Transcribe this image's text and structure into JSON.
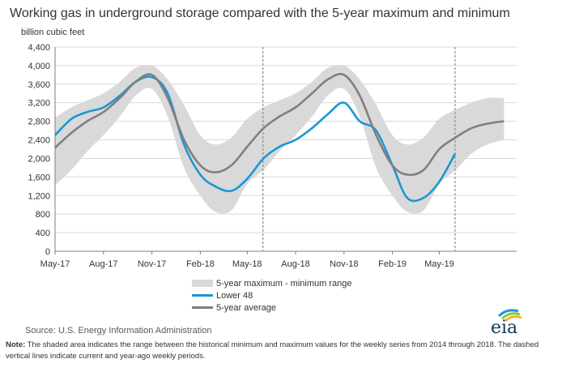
{
  "title": "Working gas in underground  storage compared with the 5-year maximum and minimum",
  "unit_label": "billion cubic feet",
  "legend": {
    "range": "5-year maximum - minimum range",
    "lower48": "Lower 48",
    "avg": "5-year average"
  },
  "source": "Source:  U.S. Energy Information Administration",
  "note_label": "Note:",
  "note_text": " The shaded area indicates the range between the historical minimum and maximum values for the weekly series from 2014 through 2018. The dashed vertical lines indicate current and year-ago weekly periods.",
  "logo_text": "eia",
  "colors": {
    "range": "#d9d9d9",
    "lower48": "#1a97d5",
    "avg": "#7f7f7f",
    "logo_blue": "#1a97d5",
    "logo_green": "#8dc63f",
    "logo_yellow": "#f6b325"
  },
  "chart_data": {
    "type": "line",
    "x_tick_labels": [
      "May-17",
      "Aug-17",
      "Nov-17",
      "Feb-18",
      "May-18",
      "Aug-18",
      "Nov-18",
      "Feb-19",
      "May-19"
    ],
    "ylim": [
      0,
      4400
    ],
    "y_ticks": [
      0,
      400,
      800,
      1200,
      1600,
      2000,
      2400,
      2800,
      3200,
      3600,
      4000,
      4400
    ],
    "y_tick_labels": [
      "0",
      "400",
      "800",
      "1,200",
      "1,600",
      "2,000",
      "2,400",
      "2,800",
      "3,200",
      "3,600",
      "4,000",
      "4,400"
    ],
    "vertical_dashed_lines": [
      "2018-05-31",
      "2019-05-31"
    ],
    "range": {
      "x": [
        "2017-05-01",
        "2017-06-01",
        "2017-07-01",
        "2017-08-01",
        "2017-09-01",
        "2017-10-01",
        "2017-11-01",
        "2017-12-01",
        "2018-01-01",
        "2018-02-01",
        "2018-03-01",
        "2018-04-01",
        "2018-05-01",
        "2018-06-01",
        "2018-07-01",
        "2018-08-01",
        "2018-09-01",
        "2018-10-01",
        "2018-11-01",
        "2018-12-01",
        "2019-01-01",
        "2019-02-01",
        "2019-03-01",
        "2019-04-01",
        "2019-05-01",
        "2019-06-01",
        "2019-07-01",
        "2019-08-01",
        "2019-09-01"
      ],
      "max": [
        2880,
        3100,
        3250,
        3400,
        3650,
        3950,
        4000,
        3700,
        3150,
        2500,
        2300,
        2450,
        2850,
        3100,
        3250,
        3400,
        3650,
        3950,
        4000,
        3700,
        3150,
        2500,
        2300,
        2450,
        2850,
        3050,
        3200,
        3300,
        3300
      ],
      "min": [
        1420,
        1750,
        2150,
        2500,
        2900,
        3350,
        3500,
        2900,
        1800,
        1200,
        850,
        880,
        1450,
        1750,
        2150,
        2500,
        2900,
        3350,
        3500,
        2900,
        1800,
        1200,
        850,
        880,
        1450,
        1750,
        2100,
        2300,
        2400
      ]
    },
    "series": [
      {
        "name": "Lower 48",
        "x": [
          "2017-05-01",
          "2017-06-01",
          "2017-07-01",
          "2017-08-01",
          "2017-09-01",
          "2017-10-01",
          "2017-11-01",
          "2017-12-01",
          "2018-01-01",
          "2018-02-01",
          "2018-03-01",
          "2018-04-01",
          "2018-05-01",
          "2018-06-01",
          "2018-07-01",
          "2018-08-01",
          "2018-09-01",
          "2018-10-01",
          "2018-11-01",
          "2018-12-01",
          "2019-01-01",
          "2019-02-01",
          "2019-03-01",
          "2019-04-01",
          "2019-05-01",
          "2019-05-31"
        ],
        "values": [
          2500,
          2850,
          3000,
          3100,
          3350,
          3650,
          3750,
          3400,
          2300,
          1650,
          1400,
          1300,
          1560,
          2000,
          2250,
          2400,
          2650,
          2950,
          3200,
          2800,
          2600,
          1850,
          1150,
          1150,
          1500,
          2100
        ]
      },
      {
        "name": "5-year average",
        "x": [
          "2017-05-01",
          "2017-06-01",
          "2017-07-01",
          "2017-08-01",
          "2017-09-01",
          "2017-10-01",
          "2017-11-01",
          "2017-12-01",
          "2018-01-01",
          "2018-02-01",
          "2018-03-01",
          "2018-04-01",
          "2018-05-01",
          "2018-06-01",
          "2018-07-01",
          "2018-08-01",
          "2018-09-01",
          "2018-10-01",
          "2018-11-01",
          "2018-12-01",
          "2019-01-01",
          "2019-02-01",
          "2019-03-01",
          "2019-04-01",
          "2019-05-01",
          "2019-06-01",
          "2019-07-01",
          "2019-08-01",
          "2019-09-01"
        ],
        "values": [
          2230,
          2550,
          2800,
          3000,
          3300,
          3650,
          3800,
          3300,
          2400,
          1850,
          1700,
          1850,
          2250,
          2650,
          2900,
          3100,
          3400,
          3700,
          3800,
          3350,
          2500,
          1850,
          1650,
          1750,
          2200,
          2450,
          2650,
          2750,
          2800
        ]
      }
    ]
  }
}
